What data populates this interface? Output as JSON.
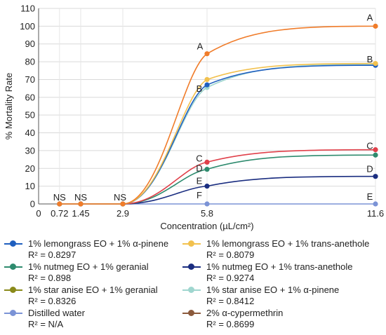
{
  "chart_data": {
    "type": "line",
    "xlabel": "Concentration (µL/cm²)",
    "ylabel": "% Mortality Rate",
    "x_ticks": [
      "0",
      "0.72",
      "1.45",
      "2.9",
      "5.8",
      "11.6"
    ],
    "x": [
      0.72,
      1.45,
      2.9,
      5.8,
      11.6
    ],
    "ylim": [
      0,
      110
    ],
    "y_ticks": [
      0,
      10,
      20,
      30,
      40,
      50,
      60,
      70,
      80,
      90,
      100,
      110
    ],
    "grid": true,
    "legend_position": "bottom",
    "series": [
      {
        "name": "1% lemongrass EO + 1% α-pinene",
        "r2": "R² = 0.8297",
        "color": "#1f5fbf",
        "values": [
          0,
          0,
          0,
          67,
          78
        ]
      },
      {
        "name": "1% lemongrass EO + 1% trans-anethole",
        "r2": "R² = 0.8079",
        "color": "#f2c14e",
        "values": [
          0,
          0,
          0,
          70,
          79
        ]
      },
      {
        "name": "1% nutmeg EO + 1% geranial",
        "r2": "R² = 0.898",
        "color": "#2e8b6e",
        "values": [
          0,
          0,
          0,
          19.5,
          27.5
        ]
      },
      {
        "name": "1% nutmeg EO + 1% trans-anethole",
        "r2": "R² = 0.9274",
        "color": "#1a2d80",
        "values": [
          0,
          0,
          0,
          10,
          15.5
        ]
      },
      {
        "name": "1% star anise EO + 1% geranial",
        "r2": "R² = 0.8326",
        "color": "#8a8a1a",
        "values": [
          0,
          0,
          0,
          84.5,
          100
        ]
      },
      {
        "name": "1% star anise EO + 1% α-pinene",
        "r2": "R² = 0.8412",
        "color": "#9fd6cf",
        "values": [
          0,
          0,
          0,
          65.5,
          78.5
        ]
      },
      {
        "name": "Distilled water",
        "r2": "R² = N/A",
        "color": "#7b93d6",
        "values": [
          0,
          0,
          0,
          0,
          0
        ]
      },
      {
        "name": "2% α-cypermethrin",
        "r2": "R² = 0.8699",
        "color": "#8b5a3c",
        "values": [
          0,
          0,
          0,
          23.5,
          30.5
        ]
      }
    ],
    "curve_colors": {
      "star_anise_geranial": "#f07c2a",
      "cypermethrin": "#e0404a"
    },
    "annotations": [
      {
        "text": "NS",
        "x": 0.72,
        "y": 0
      },
      {
        "text": "NS",
        "x": 1.45,
        "y": 0
      },
      {
        "text": "NS",
        "x": 2.9,
        "y": 0
      },
      {
        "text": "A",
        "x": 5.8,
        "y": 84.5
      },
      {
        "text": "B",
        "x": 5.8,
        "y": 65.5
      },
      {
        "text": "C",
        "x": 5.8,
        "y": 23.5
      },
      {
        "text": "D",
        "x": 5.8,
        "y": 19.5
      },
      {
        "text": "E",
        "x": 5.8,
        "y": 10
      },
      {
        "text": "F",
        "x": 5.8,
        "y": 0
      },
      {
        "text": "A",
        "x": 11.6,
        "y": 100
      },
      {
        "text": "B",
        "x": 11.6,
        "y": 78.5
      },
      {
        "text": "C",
        "x": 11.6,
        "y": 30.5
      },
      {
        "text": "D",
        "x": 11.6,
        "y": 15.5
      },
      {
        "text": "E",
        "x": 11.6,
        "y": 0
      }
    ]
  }
}
